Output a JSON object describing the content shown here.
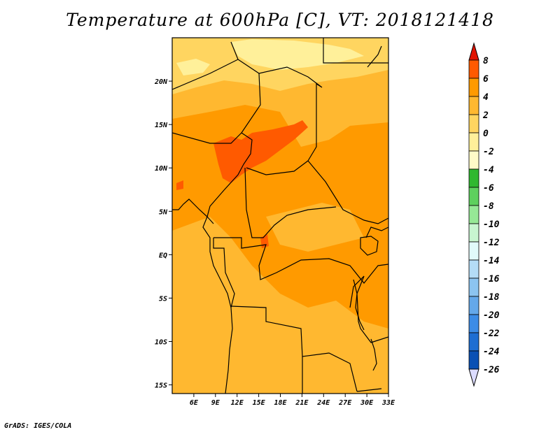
{
  "title": "Temperature at 600hPa [C], VT: 2018121418",
  "credit": "GrADS: IGES/COLA",
  "map": {
    "lon_range": [
      3,
      33
    ],
    "lat_range": [
      -16,
      25
    ],
    "x_ticks": [
      "6E",
      "9E",
      "12E",
      "15E",
      "18E",
      "21E",
      "24E",
      "27E",
      "30E",
      "33E"
    ],
    "y_ticks": [
      "20N",
      "15N",
      "10N",
      "5N",
      "EQ",
      "5S",
      "10S",
      "15S"
    ]
  },
  "colorbar": {
    "labels": [
      "8",
      "6",
      "4",
      "2",
      "0",
      "-2",
      "-4",
      "-6",
      "-8",
      "-10",
      "-12",
      "-14",
      "-16",
      "-18",
      "-20",
      "-22",
      "-24",
      "-26"
    ],
    "colors": [
      "#ff2a00",
      "#ff5a00",
      "#ff9a00",
      "#ffb830",
      "#ffd560",
      "#fff09a",
      "#fffac8",
      "#30b830",
      "#5ed05e",
      "#96e896",
      "#c8f5d0",
      "#e1fafa",
      "#b4dcf6",
      "#8cc4f0",
      "#64a8ea",
      "#3c8ce6",
      "#1e6ed2",
      "#0a50b4",
      "#0a2c8c",
      "#1e0a5a"
    ],
    "top_arrow_color": "#e11400",
    "bottom_arrow_color": "#dcdcff"
  },
  "field_colors": {
    "warm_orange": "#ff9a00",
    "light_orange": "#ffb830",
    "pale": "#ffd560",
    "very_pale": "#fff09a",
    "red_orange": "#ff5a00"
  }
}
